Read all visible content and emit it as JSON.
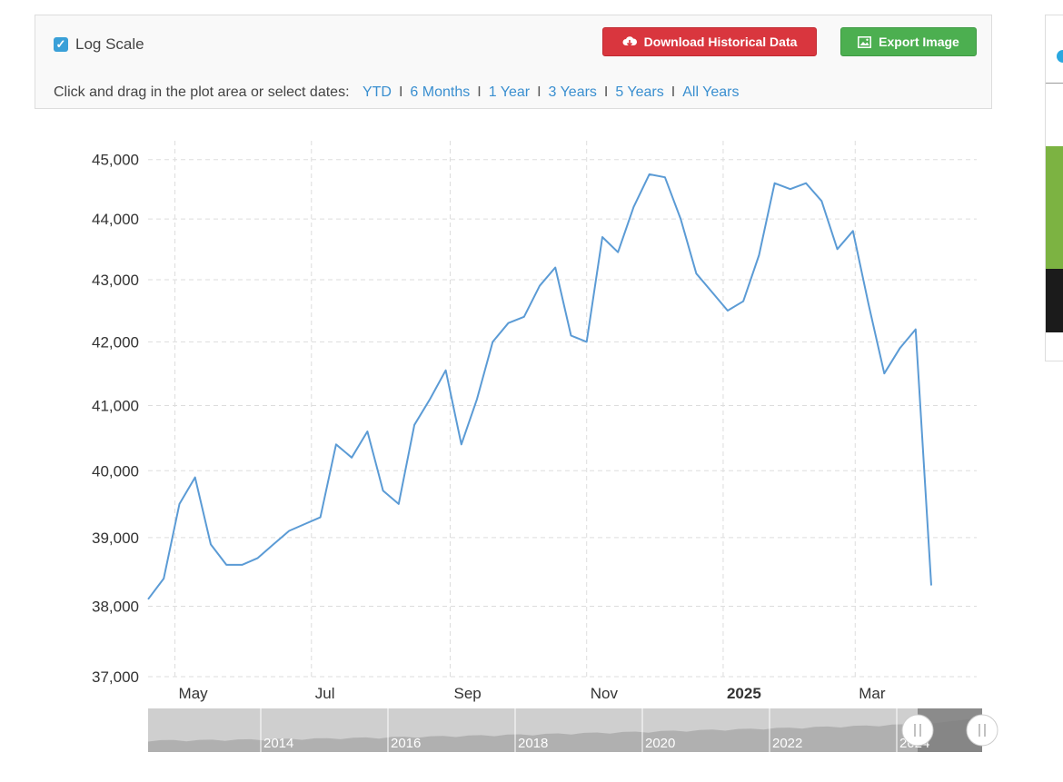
{
  "controls": {
    "log_scale_label": "Log Scale",
    "log_scale_checked": true,
    "download_label": "Download Historical Data",
    "export_label": "Export Image",
    "range_prompt": "Click and drag in the plot area or select dates:",
    "ranges": [
      "YTD",
      "6 Months",
      "1 Year",
      "3 Years",
      "5 Years",
      "All Years"
    ]
  },
  "colors": {
    "line": "#5b9bd5",
    "download": "#d9363e",
    "export": "#4caf50",
    "link": "#3a8fd0"
  },
  "navigator": {
    "years": [
      "2014",
      "2016",
      "2018",
      "2020",
      "2022",
      "2024"
    ]
  },
  "chart_data": {
    "type": "line",
    "title": "",
    "xlabel": "",
    "ylabel": "",
    "y_scale": "log",
    "ylim": [
      37000,
      45400
    ],
    "y_ticks": [
      37000,
      38000,
      39000,
      40000,
      41000,
      42000,
      43000,
      44000,
      45000
    ],
    "y_tick_labels": [
      "37,000",
      "38,000",
      "39,000",
      "40,000",
      "41,000",
      "42,000",
      "43,000",
      "44,000",
      "45,000"
    ],
    "x_tick_labels": [
      "May",
      "Jul",
      "Sep",
      "Nov",
      "2025",
      "Mar"
    ],
    "x_tick_bold": [
      false,
      false,
      false,
      false,
      true,
      false
    ],
    "grid": true,
    "series": [
      {
        "x": [
          "2024-04-19",
          "2024-04-26",
          "2024-05-03",
          "2024-05-10",
          "2024-05-17",
          "2024-05-24",
          "2024-05-31",
          "2024-06-07",
          "2024-06-14",
          "2024-06-21",
          "2024-06-28",
          "2024-07-05",
          "2024-07-12",
          "2024-07-19",
          "2024-07-26",
          "2024-08-02",
          "2024-08-09",
          "2024-08-16",
          "2024-08-23",
          "2024-08-30",
          "2024-09-06",
          "2024-09-13",
          "2024-09-20",
          "2024-09-27",
          "2024-10-04",
          "2024-10-11",
          "2024-10-18",
          "2024-10-25",
          "2024-11-01",
          "2024-11-08",
          "2024-11-15",
          "2024-11-22",
          "2024-11-29",
          "2024-12-06",
          "2024-12-13",
          "2024-12-20",
          "2024-12-27",
          "2025-01-03",
          "2025-01-10",
          "2025-01-17",
          "2025-01-24",
          "2025-01-31",
          "2025-02-07",
          "2025-02-14",
          "2025-02-21",
          "2025-02-28",
          "2025-03-07",
          "2025-03-14",
          "2025-03-21",
          "2025-03-28",
          "2025-04-04"
        ],
        "values": [
          38100,
          38400,
          39500,
          39900,
          38900,
          38600,
          38600,
          38700,
          38900,
          39100,
          39200,
          39300,
          40400,
          40200,
          40600,
          39700,
          39500,
          40700,
          41100,
          41550,
          40400,
          41100,
          42000,
          42300,
          42400,
          42900,
          43200,
          42100,
          42000,
          43700,
          43450,
          44200,
          44750,
          44700,
          44000,
          43100,
          42800,
          42500,
          42650,
          43400,
          44600,
          44500,
          44600,
          44300,
          43500,
          43800,
          42600,
          41500,
          41900,
          42200,
          38300
        ]
      }
    ]
  }
}
